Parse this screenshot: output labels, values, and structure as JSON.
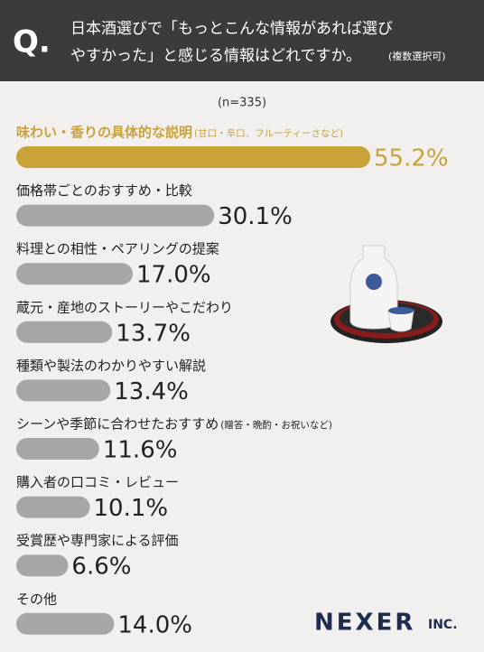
{
  "chart_data": {
    "type": "bar",
    "title_mark": "Q.",
    "title_lines": [
      "日本酒選びで「もっとこんな情報があれば選び",
      "やすかった」と感じる情報はどれですか。"
    ],
    "title_note": "(複数選択可)",
    "subtitle": "(n=335)",
    "categories": [
      "味わい・香りの具体的な説明",
      "価格帯ごとのおすすめ・比較",
      "料理との相性・ペアリングの提案",
      "蔵元・産地のストーリーやこだわり",
      "種類や製法のわかりやすい解説",
      "シーンや季節に合わせたおすすめ",
      "購入者の口コミ・レビュー",
      "受賞歴や専門家による評価",
      "その他"
    ],
    "category_notes": [
      "(甘口・辛口、フルーティーさなど)",
      null,
      null,
      null,
      null,
      "(贈答・晩酌・お祝いなど)",
      null,
      null,
      null
    ],
    "values": [
      55.2,
      30.1,
      17.0,
      13.7,
      13.4,
      11.6,
      10.1,
      6.6,
      14.0
    ],
    "value_labels": [
      "55.2%",
      "30.1%",
      "17.0%",
      "13.7%",
      "13.4%",
      "11.6%",
      "10.1%",
      "6.6%",
      "14.0%"
    ],
    "colors": [
      "#c9a23a",
      "#a6a6a6",
      "#a6a6a6",
      "#a6a6a6",
      "#a6a6a6",
      "#a6a6a6",
      "#a6a6a6",
      "#a6a6a6",
      "#a6a6a6"
    ],
    "brand": "NEXER",
    "brand_suffix": "INC."
  }
}
